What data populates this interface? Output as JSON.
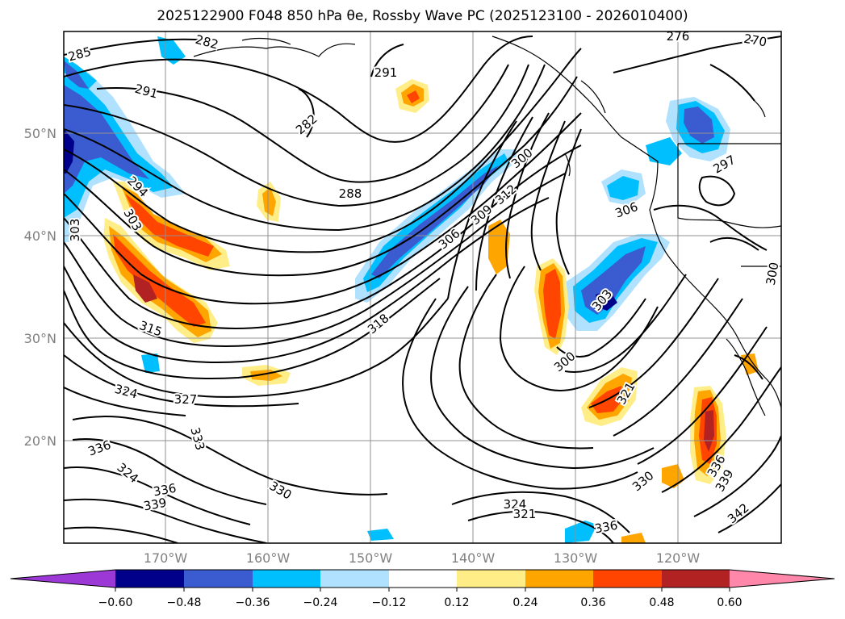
{
  "title": "2025122900 F048 850 hPa θe, Rossby Wave PC (2025123100 - 2026010400)",
  "map": {
    "lat_ticks": [
      "50°N",
      "40°N",
      "30°N",
      "20°N"
    ],
    "lon_ticks": [
      "170°W",
      "160°W",
      "150°W",
      "140°W",
      "130°W",
      "120°W"
    ],
    "contour_labels": [
      "285",
      "282",
      "291",
      "282",
      "291",
      "294",
      "303",
      "303",
      "288",
      "300",
      "306",
      "309",
      "312",
      "306",
      "297",
      "300",
      "303",
      "315",
      "318",
      "300",
      "321",
      "324",
      "327",
      "333",
      "336",
      "324",
      "336",
      "339",
      "330",
      "324",
      "321",
      "336",
      "330",
      "336",
      "339",
      "342",
      "276",
      "270"
    ]
  },
  "colorbar": {
    "ticks": [
      "−0.60",
      "−0.48",
      "−0.36",
      "−0.24",
      "−0.12",
      "0.12",
      "0.24",
      "0.36",
      "0.48",
      "0.60"
    ],
    "colors": {
      "under": "#9b38d6",
      "bins": [
        "#00008b",
        "#3a5cd0",
        "#00bfff",
        "#b0e2ff",
        "#ffffff",
        "#ffee88",
        "#ffa500",
        "#ff4500",
        "#b22222"
      ],
      "over": "#ff88aa"
    }
  }
}
